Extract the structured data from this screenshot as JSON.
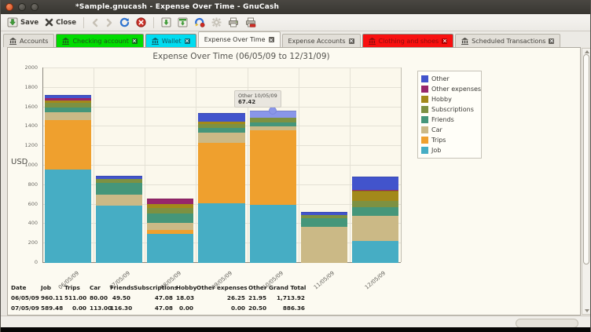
{
  "window": {
    "title": "*Sample.gnucash - Expense Over Time - GnuCash"
  },
  "toolbar": {
    "save": "Save",
    "close": "Close"
  },
  "tabs": [
    {
      "label": "Accounts",
      "icon": "bank",
      "closable": false
    },
    {
      "label": "Checking account",
      "icon": "bank",
      "closable": true,
      "bg": "#00dc00",
      "fg": "#1f521f",
      "close_bg": "#13691c"
    },
    {
      "label": "Wallet",
      "icon": "bank",
      "closable": true,
      "bg": "#00dcf0",
      "fg": "#0f5560",
      "close_bg": "#0c6874"
    },
    {
      "label": "Expense Over Time",
      "closable": true,
      "active": true
    },
    {
      "label": "Expense Accounts",
      "closable": true
    },
    {
      "label": "Clothing and shoes",
      "icon": "bank",
      "closable": true,
      "bg": "#f81010",
      "fg": "#8c0d0d",
      "close_bg": "#b00000"
    },
    {
      "label": "Scheduled Transactions",
      "icon": "bank",
      "closable": true
    }
  ],
  "chart_data": {
    "type": "bar",
    "stacked": true,
    "title": "Expense Over Time (06/05/09 to 12/31/09)",
    "ylabel": "USD",
    "ylim": [
      0,
      2000
    ],
    "ytick_step": 200,
    "grid": true,
    "legend_position": "right",
    "categories": [
      "06/05/09",
      "07/05/09",
      "08/05/09",
      "09/05/09",
      "10/05/09",
      "11/05/09",
      "12/05/09"
    ],
    "series": [
      {
        "name": "Job",
        "color": "#46adc4",
        "values": [
          960.11,
          589.48,
          300,
          613,
          600,
          0,
          226
        ]
      },
      {
        "name": "Trips",
        "color": "#efa02e",
        "values": [
          511.0,
          0.0,
          40,
          620,
          766,
          0,
          0
        ]
      },
      {
        "name": "Car",
        "color": "#cbb986",
        "values": [
          80.0,
          113.0,
          75,
          105,
          40,
          370,
          258
        ]
      },
      {
        "name": "Friends",
        "color": "#45967a",
        "values": [
          49.5,
          116.3,
          95,
          48,
          35,
          90,
          89
        ]
      },
      {
        "name": "Subscriptions",
        "color": "#7d9142",
        "values": [
          47.08,
          47.08,
          55,
          40,
          48,
          35,
          65
        ]
      },
      {
        "name": "Hobby",
        "color": "#a3891a",
        "values": [
          18.03,
          0.0,
          40,
          25,
          0,
          0,
          97
        ]
      },
      {
        "name": "Other expenses",
        "color": "#97266b",
        "values": [
          26.25,
          0.0,
          50,
          0,
          0,
          0,
          16
        ]
      },
      {
        "name": "Other",
        "color": "#4254cc",
        "values": [
          21.95,
          20.5,
          0,
          81,
          67.42,
          20,
          129
        ]
      }
    ],
    "highlight": {
      "series": "Other",
      "category": "10/05/09",
      "category_index": 4,
      "value": 67.42,
      "color": "#8996ea"
    }
  },
  "tooltip": {
    "line1": "Other 10/05/09",
    "value": "67.42"
  },
  "table": {
    "headers": [
      "Date",
      "Job",
      "Trips",
      "Car",
      "Friends",
      "Subscriptions",
      "Hobby",
      "Other expenses",
      "Other",
      "Grand Total"
    ],
    "rows": [
      [
        "06/05/09",
        "960.11",
        "511.00",
        "80.00",
        "49.50",
        "47.08",
        "18.03",
        "26.25",
        "21.95",
        "1,713.92"
      ],
      [
        "07/05/09",
        "589.48",
        "0.00",
        "113.00",
        "116.30",
        "47.08",
        "0.00",
        "0.00",
        "20.50",
        "886.36"
      ]
    ]
  }
}
